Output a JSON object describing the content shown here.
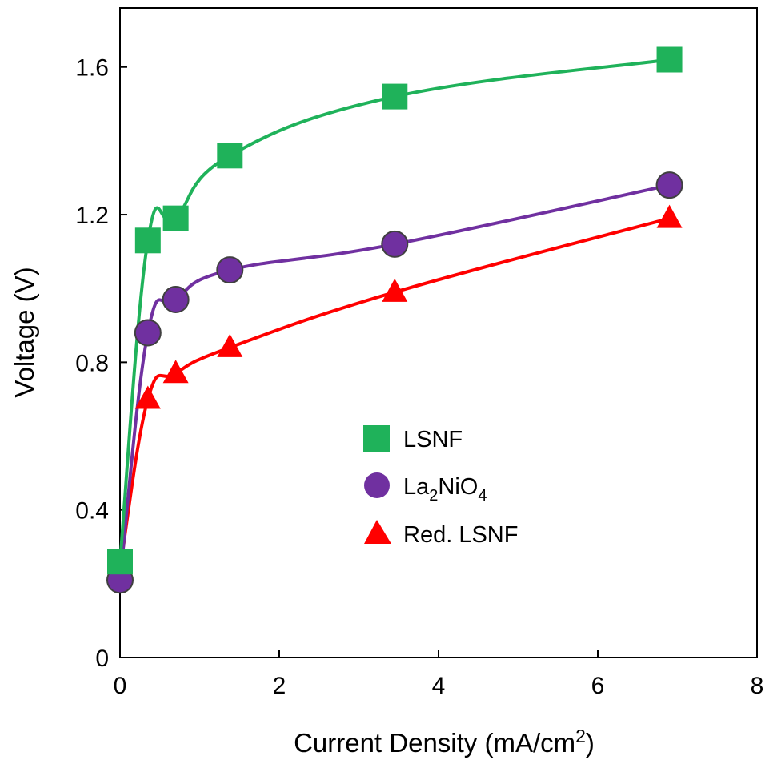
{
  "chart_data": {
    "type": "line",
    "title": "",
    "xlabel": "Current Density (mA/cm",
    "xlabel_sup": "2",
    "xlabel_tail": ")",
    "ylabel": "Voltage (V)",
    "xlim": [
      0,
      8
    ],
    "ylim": [
      0,
      1.6
    ],
    "xticks": [
      "0",
      "2",
      "4",
      "6",
      "8"
    ],
    "yticks": [
      "0",
      "0.4",
      "0.8",
      "1.2",
      "1.6"
    ],
    "grid": false,
    "legend_position": "center-right",
    "series": [
      {
        "name": "LSNF",
        "marker": "square",
        "color": "#1fb25a",
        "x": [
          0,
          0.35,
          0.7,
          1.38,
          3.45,
          6.9
        ],
        "y": [
          0.26,
          1.13,
          1.19,
          1.36,
          1.52,
          1.62
        ]
      },
      {
        "name": "La2NiO4",
        "name_parts": [
          "La",
          "2",
          "NiO",
          "4"
        ],
        "marker": "circle",
        "color": "#7030a0",
        "x": [
          0,
          0.35,
          0.7,
          1.38,
          3.45,
          6.9
        ],
        "y": [
          0.21,
          0.88,
          0.97,
          1.05,
          1.12,
          1.28
        ]
      },
      {
        "name": "Red. LSNF",
        "marker": "triangle",
        "color": "#ff0000",
        "x": [
          0,
          0.35,
          0.7,
          1.38,
          3.45,
          6.9
        ],
        "y": [
          0.24,
          0.7,
          0.77,
          0.84,
          0.99,
          1.19
        ]
      }
    ]
  }
}
